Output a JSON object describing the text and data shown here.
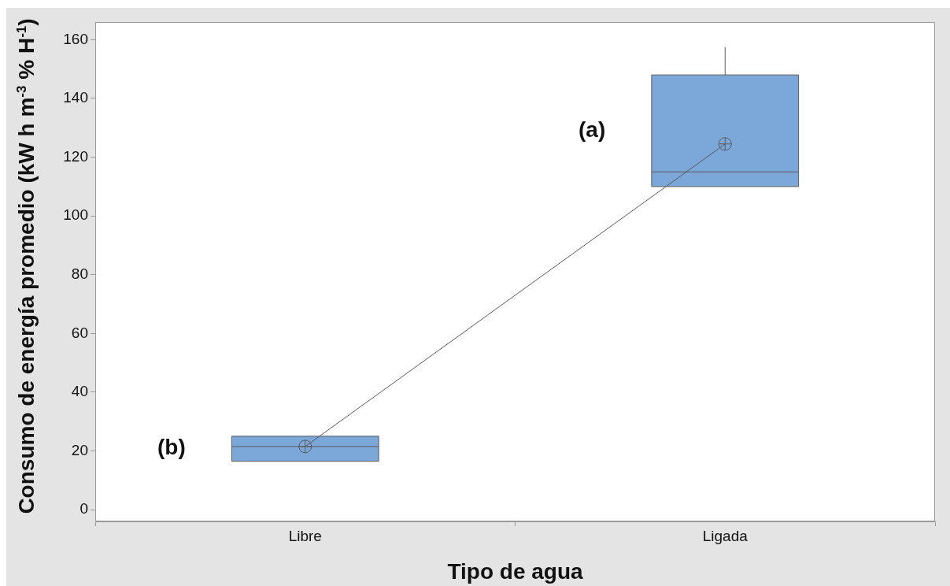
{
  "chart_data": {
    "type": "box",
    "xlabel": "Tipo de agua",
    "ylabel": "Consumo de energía promedio (kW h m$^{-3}$ % H$^{-1}$)",
    "categories": [
      "Libre",
      "Ligada"
    ],
    "ylim": [
      -4,
      166
    ],
    "yticks": [
      0,
      20,
      40,
      60,
      80,
      100,
      120,
      140,
      160
    ],
    "grid": false,
    "legend": false,
    "series": [
      {
        "type": "box",
        "color": "#7ba7d9",
        "boxes": [
          {
            "low": 16.5,
            "q1": 16.5,
            "median": 21.5,
            "q3": 25,
            "high": 25,
            "mean": 21.5
          },
          {
            "low": 110,
            "q1": 110,
            "median": 115,
            "q3": 148,
            "high": 157.5,
            "mean": 124.5
          }
        ]
      },
      {
        "type": "line",
        "color": "#595959",
        "values": [
          21.5,
          124.5
        ],
        "marker": "none"
      }
    ],
    "annotations": [
      "(b)",
      "(a)"
    ]
  }
}
